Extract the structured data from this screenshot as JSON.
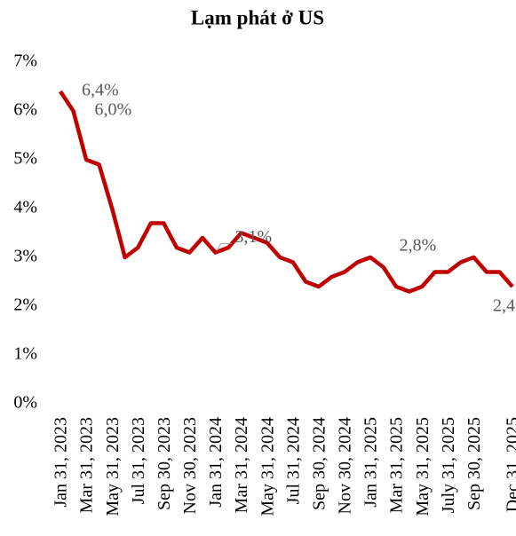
{
  "chart_data": {
    "type": "line",
    "title": "Lạm phát ở US",
    "categories": [
      "Jan 31, 2023",
      null,
      "Mar 31, 2023",
      null,
      "May 31, 2023",
      null,
      "Jul 31, 2023",
      null,
      "Sep 30, 2023",
      null,
      "Nov 30, 2023",
      null,
      "Jan 31, 2024",
      null,
      "Mar 31, 2024",
      null,
      "May 31, 2024",
      null,
      "Jul 31, 2024",
      null,
      "Sep 30, 2024",
      null,
      "Nov 30, 2024",
      null,
      "Jan 31, 2025",
      null,
      "Mar 31, 2025",
      null,
      "May 31, 2025",
      null,
      "July 31, 2025",
      null,
      "Sep 30, 2025",
      null,
      null,
      "Dec 31, 2025"
    ],
    "series": [
      {
        "name": "Lạm phát",
        "color": "#c00000",
        "values": [
          6.4,
          6.0,
          5.0,
          4.9,
          4.0,
          3.0,
          3.2,
          3.7,
          3.7,
          3.2,
          3.1,
          3.4,
          3.1,
          3.2,
          3.5,
          3.4,
          3.3,
          3.0,
          2.9,
          2.5,
          2.4,
          2.6,
          2.7,
          2.9,
          3.0,
          2.8,
          2.4,
          2.3,
          2.4,
          2.7,
          2.7,
          2.9,
          3.0,
          2.7,
          2.7,
          2.4
        ],
        "value_labels": [
          "6,4%",
          "6,0%",
          null,
          null,
          null,
          null,
          null,
          null,
          null,
          null,
          null,
          null,
          "3,1%",
          null,
          null,
          null,
          null,
          null,
          null,
          null,
          null,
          null,
          null,
          null,
          null,
          "2,8%",
          null,
          null,
          null,
          null,
          null,
          null,
          null,
          null,
          null,
          "2,4"
        ]
      }
    ],
    "ylim": [
      0,
      7
    ],
    "yticks": [
      {
        "value": 0,
        "label": "0%"
      },
      {
        "value": 1,
        "label": "1%"
      },
      {
        "value": 2,
        "label": "2%"
      },
      {
        "value": 3,
        "label": "3%"
      },
      {
        "value": 4,
        "label": "4%"
      },
      {
        "value": 5,
        "label": "5%"
      },
      {
        "value": 6,
        "label": "6%"
      },
      {
        "value": 7,
        "label": "7%"
      }
    ],
    "grid": false
  }
}
